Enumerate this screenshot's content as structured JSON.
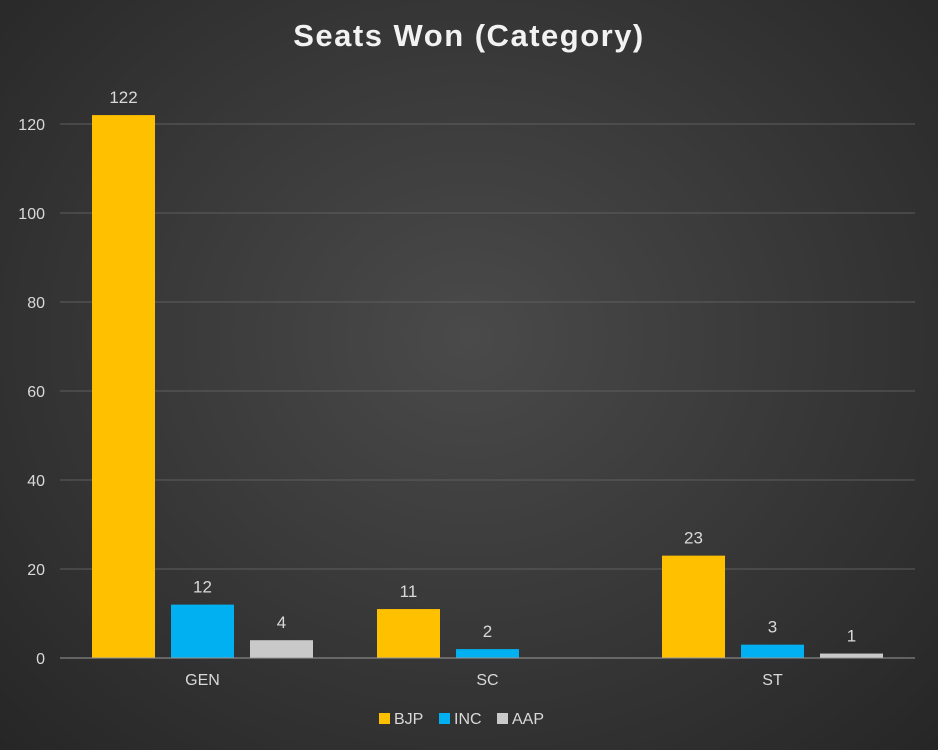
{
  "chart_data": {
    "type": "bar",
    "title": "Seats Won (Category)",
    "categories": [
      "GEN",
      "SC",
      "ST"
    ],
    "series": [
      {
        "name": "BJP",
        "color": "#ffc000",
        "values": [
          122,
          11,
          23
        ]
      },
      {
        "name": "INC",
        "color": "#00b0f0",
        "values": [
          12,
          2,
          3
        ]
      },
      {
        "name": "AAP",
        "color": "#c9c9c9",
        "values": [
          4,
          0,
          1
        ]
      }
    ],
    "ylim": [
      0,
      120
    ],
    "yticks": [
      0,
      20,
      40,
      60,
      80,
      100,
      120
    ],
    "xlabel": "",
    "ylabel": "",
    "grid": true,
    "legend_position": "bottom"
  }
}
